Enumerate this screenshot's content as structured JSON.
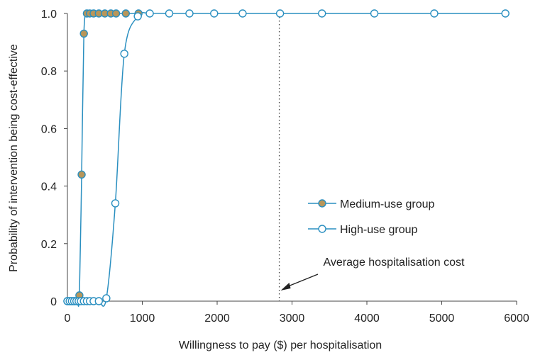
{
  "chart_data": {
    "type": "line",
    "title": "",
    "xlabel": "Willingness to pay ($) per hospitalisation",
    "ylabel": "Probability of intervention being cost-effective",
    "xlim": [
      0,
      6000
    ],
    "ylim": [
      0,
      1.0
    ],
    "x_ticks": [
      0,
      1000,
      2000,
      3000,
      4000,
      5000,
      6000
    ],
    "x_tick_labels": [
      "0",
      "1000",
      "2000",
      "3000",
      "4000",
      "5000",
      "6000"
    ],
    "y_ticks": [
      0,
      0.2,
      0.4,
      0.6,
      0.8,
      1.0
    ],
    "y_tick_labels": [
      "0",
      "0.2",
      "0.4",
      "0.6",
      "0.8",
      "1.0"
    ],
    "grid": false,
    "legend_position": "right-middle",
    "colors": {
      "line": "#2a8fc0",
      "medium_fill": "#b8965a",
      "high_fill": "#ffffff",
      "axis": "#444444",
      "refline": "#444444"
    },
    "series": [
      {
        "name": "Medium-use group",
        "marker": "filled-circle",
        "x": [
          0,
          20,
          40,
          60,
          80,
          100,
          130,
          160,
          190,
          220,
          260,
          300,
          350,
          420,
          500,
          580,
          650,
          780,
          950
        ],
        "y": [
          0,
          0,
          0,
          0,
          0,
          0,
          0,
          0.02,
          0.44,
          0.93,
          1.0,
          1.0,
          1.0,
          1.0,
          1.0,
          1.0,
          1.0,
          1.0,
          1.0
        ]
      },
      {
        "name": "High-use group",
        "marker": "open-circle",
        "x": [
          0,
          30,
          60,
          90,
          120,
          150,
          180,
          220,
          260,
          300,
          350,
          420,
          520,
          640,
          760,
          940,
          1100,
          1360,
          1630,
          1960,
          2340,
          2840,
          3400,
          4100,
          4900,
          5850
        ],
        "y": [
          0,
          0,
          0,
          0,
          0,
          0,
          0,
          0,
          0,
          0,
          0,
          0,
          0.01,
          0.34,
          0.86,
          0.99,
          1.0,
          1.0,
          1.0,
          1.0,
          1.0,
          1.0,
          1.0,
          1.0,
          1.0,
          1.0
        ]
      }
    ],
    "reference_line": {
      "x": 2830,
      "style": "dotted",
      "label": "Average hospitalisation cost"
    }
  }
}
